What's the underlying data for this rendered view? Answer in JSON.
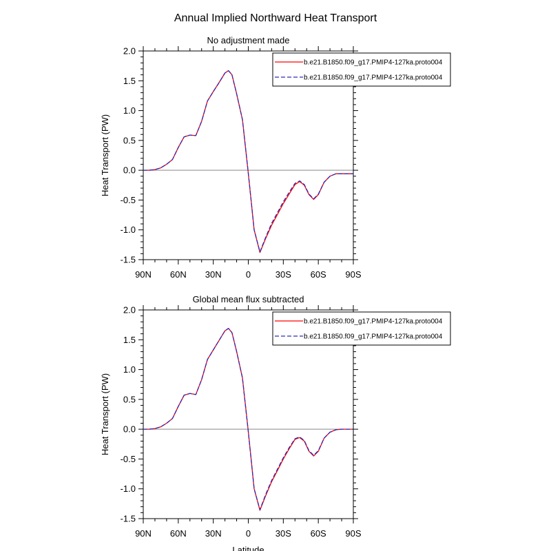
{
  "figure_title": "Annual Implied Northward Heat Transport",
  "colors": {
    "series1": "#ff0000",
    "series2": "#2b2bb8",
    "zero_line": "#888888",
    "axis": "#000000"
  },
  "chart_data": [
    {
      "type": "line",
      "title": "No adjustment made",
      "xlabel": "",
      "ylabel": "Heat Transport (PW)",
      "xlim": [
        90,
        -90
      ],
      "ylim": [
        -1.5,
        2.0
      ],
      "x_ticks": [
        90,
        60,
        30,
        0,
        -30,
        -60,
        -90
      ],
      "x_tick_labels": [
        "90N",
        "60N",
        "30N",
        "0",
        "30S",
        "60S",
        "90S"
      ],
      "y_ticks": [
        -1.5,
        -1.0,
        -0.5,
        0.0,
        0.5,
        1.0,
        1.5,
        2.0
      ],
      "y_tick_labels": [
        "-1.5",
        "-1.0",
        "-0.5",
        "0.0",
        "0.5",
        "1.0",
        "1.5",
        "2.0"
      ],
      "legend": {
        "placement": "top-right"
      },
      "series": [
        {
          "name": "b.e21.B1850.f09_g17.PMIP4-127ka.proto004",
          "style": "solid",
          "x": [
            90,
            85,
            80,
            75,
            70,
            65,
            60,
            55,
            50,
            45,
            40,
            35,
            30,
            25,
            20,
            17,
            14,
            10,
            5,
            0,
            -5,
            -10,
            -15,
            -20,
            -25,
            -30,
            -35,
            -40,
            -44,
            -48,
            -52,
            -56,
            -60,
            -65,
            -70,
            -75,
            -80,
            -85,
            -90
          ],
          "values": [
            0.0,
            0.0,
            0.01,
            0.04,
            0.1,
            0.18,
            0.38,
            0.56,
            0.59,
            0.58,
            0.82,
            1.16,
            1.32,
            1.47,
            1.63,
            1.67,
            1.6,
            1.28,
            0.85,
            -0.05,
            -1.0,
            -1.38,
            -1.14,
            -0.92,
            -0.74,
            -0.56,
            -0.4,
            -0.24,
            -0.19,
            -0.25,
            -0.41,
            -0.49,
            -0.41,
            -0.2,
            -0.1,
            -0.06,
            -0.06,
            -0.06,
            -0.06
          ]
        },
        {
          "name": "b.e21.B1850.f09_g17.PMIP4-127ka.proto004",
          "style": "dashed",
          "x": [
            90,
            85,
            80,
            75,
            70,
            65,
            60,
            55,
            50,
            45,
            40,
            35,
            30,
            25,
            20,
            17,
            14,
            10,
            5,
            0,
            -5,
            -10,
            -15,
            -20,
            -25,
            -30,
            -35,
            -40,
            -44,
            -48,
            -52,
            -56,
            -60,
            -65,
            -70,
            -75,
            -80,
            -85,
            -90
          ],
          "values": [
            0.0,
            0.0,
            0.01,
            0.04,
            0.1,
            0.18,
            0.38,
            0.56,
            0.59,
            0.58,
            0.82,
            1.16,
            1.32,
            1.47,
            1.63,
            1.67,
            1.6,
            1.28,
            0.85,
            -0.05,
            -1.0,
            -1.37,
            -1.12,
            -0.89,
            -0.71,
            -0.53,
            -0.37,
            -0.22,
            -0.18,
            -0.24,
            -0.4,
            -0.48,
            -0.4,
            -0.2,
            -0.1,
            -0.06,
            -0.06,
            -0.06,
            -0.06
          ]
        }
      ]
    },
    {
      "type": "line",
      "title": "Global mean flux subtracted",
      "xlabel": "Latitude",
      "ylabel": "Heat Transport (PW)",
      "xlim": [
        90,
        -90
      ],
      "ylim": [
        -1.5,
        2.0
      ],
      "x_ticks": [
        90,
        60,
        30,
        0,
        -30,
        -60,
        -90
      ],
      "x_tick_labels": [
        "90N",
        "60N",
        "30N",
        "0",
        "30S",
        "60S",
        "90S"
      ],
      "y_ticks": [
        -1.5,
        -1.0,
        -0.5,
        0.0,
        0.5,
        1.0,
        1.5,
        2.0
      ],
      "y_tick_labels": [
        "-1.5",
        "-1.0",
        "-0.5",
        "0.0",
        "0.5",
        "1.0",
        "1.5",
        "2.0"
      ],
      "legend": {
        "placement": "top-right"
      },
      "series": [
        {
          "name": "b.e21.B1850.f09_g17.PMIP4-127ka.proto004",
          "style": "solid",
          "x": [
            90,
            85,
            80,
            75,
            70,
            65,
            60,
            55,
            50,
            45,
            40,
            35,
            30,
            25,
            20,
            17,
            14,
            10,
            5,
            0,
            -5,
            -10,
            -15,
            -20,
            -25,
            -30,
            -35,
            -40,
            -44,
            -48,
            -52,
            -56,
            -60,
            -65,
            -70,
            -75,
            -80,
            -85,
            -90
          ],
          "values": [
            0.0,
            0.0,
            0.01,
            0.04,
            0.1,
            0.18,
            0.38,
            0.57,
            0.6,
            0.58,
            0.83,
            1.17,
            1.33,
            1.49,
            1.65,
            1.69,
            1.62,
            1.3,
            0.86,
            -0.04,
            -1.0,
            -1.36,
            -1.11,
            -0.88,
            -0.69,
            -0.5,
            -0.33,
            -0.17,
            -0.14,
            -0.2,
            -0.37,
            -0.45,
            -0.37,
            -0.15,
            -0.05,
            -0.01,
            0.0,
            0.0,
            0.0
          ]
        },
        {
          "name": "b.e21.B1850.f09_g17.PMIP4-127ka.proto004",
          "style": "dashed",
          "x": [
            90,
            85,
            80,
            75,
            70,
            65,
            60,
            55,
            50,
            45,
            40,
            35,
            30,
            25,
            20,
            17,
            14,
            10,
            5,
            0,
            -5,
            -10,
            -15,
            -20,
            -25,
            -30,
            -35,
            -40,
            -44,
            -48,
            -52,
            -56,
            -60,
            -65,
            -70,
            -75,
            -80,
            -85,
            -90
          ],
          "values": [
            0.0,
            0.0,
            0.01,
            0.04,
            0.1,
            0.18,
            0.38,
            0.57,
            0.6,
            0.58,
            0.83,
            1.17,
            1.33,
            1.49,
            1.65,
            1.69,
            1.62,
            1.3,
            0.86,
            -0.04,
            -1.0,
            -1.35,
            -1.09,
            -0.86,
            -0.67,
            -0.48,
            -0.31,
            -0.16,
            -0.13,
            -0.19,
            -0.36,
            -0.44,
            -0.36,
            -0.15,
            -0.05,
            -0.01,
            0.0,
            0.0,
            0.0
          ]
        }
      ]
    }
  ]
}
